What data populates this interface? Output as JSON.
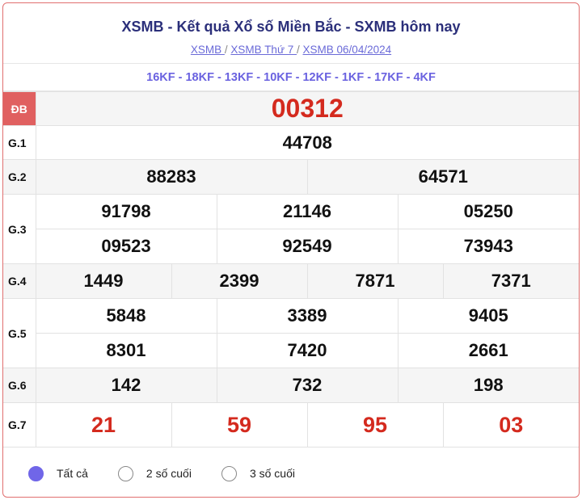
{
  "header": {
    "title": "XSMB - Kết quả Xổ số Miền Bắc - SXMB hôm nay",
    "breadcrumb": [
      "XSMB ",
      "XSMB Thứ 7 ",
      "XSMB 06/04/2024"
    ],
    "separator": "/"
  },
  "codes": "16KF - 18KF - 13KF - 10KF - 12KF - 1KF - 17KF - 4KF",
  "prizes": {
    "db": {
      "label": "ĐB",
      "values": [
        "00312"
      ]
    },
    "g1": {
      "label": "G.1",
      "values": [
        "44708"
      ]
    },
    "g2": {
      "label": "G.2",
      "values": [
        "88283",
        "64571"
      ]
    },
    "g3": {
      "label": "G.3",
      "values": [
        "91798",
        "21146",
        "05250",
        "09523",
        "92549",
        "73943"
      ]
    },
    "g4": {
      "label": "G.4",
      "values": [
        "1449",
        "2399",
        "7871",
        "7371"
      ]
    },
    "g5": {
      "label": "G.5",
      "values": [
        "5848",
        "3389",
        "9405",
        "8301",
        "7420",
        "2661"
      ]
    },
    "g6": {
      "label": "G.6",
      "values": [
        "142",
        "732",
        "198"
      ]
    },
    "g7": {
      "label": "G.7",
      "values": [
        "21",
        "59",
        "95",
        "03"
      ]
    }
  },
  "filter": {
    "options": [
      "Tất cả",
      "2 số cuối",
      "3 số cuối"
    ],
    "selected": "Tất cả"
  },
  "colors": {
    "accent": "#e06060",
    "special_number": "#d42a1e",
    "link": "#6a6ad8",
    "radio_selected": "#7066e8"
  }
}
